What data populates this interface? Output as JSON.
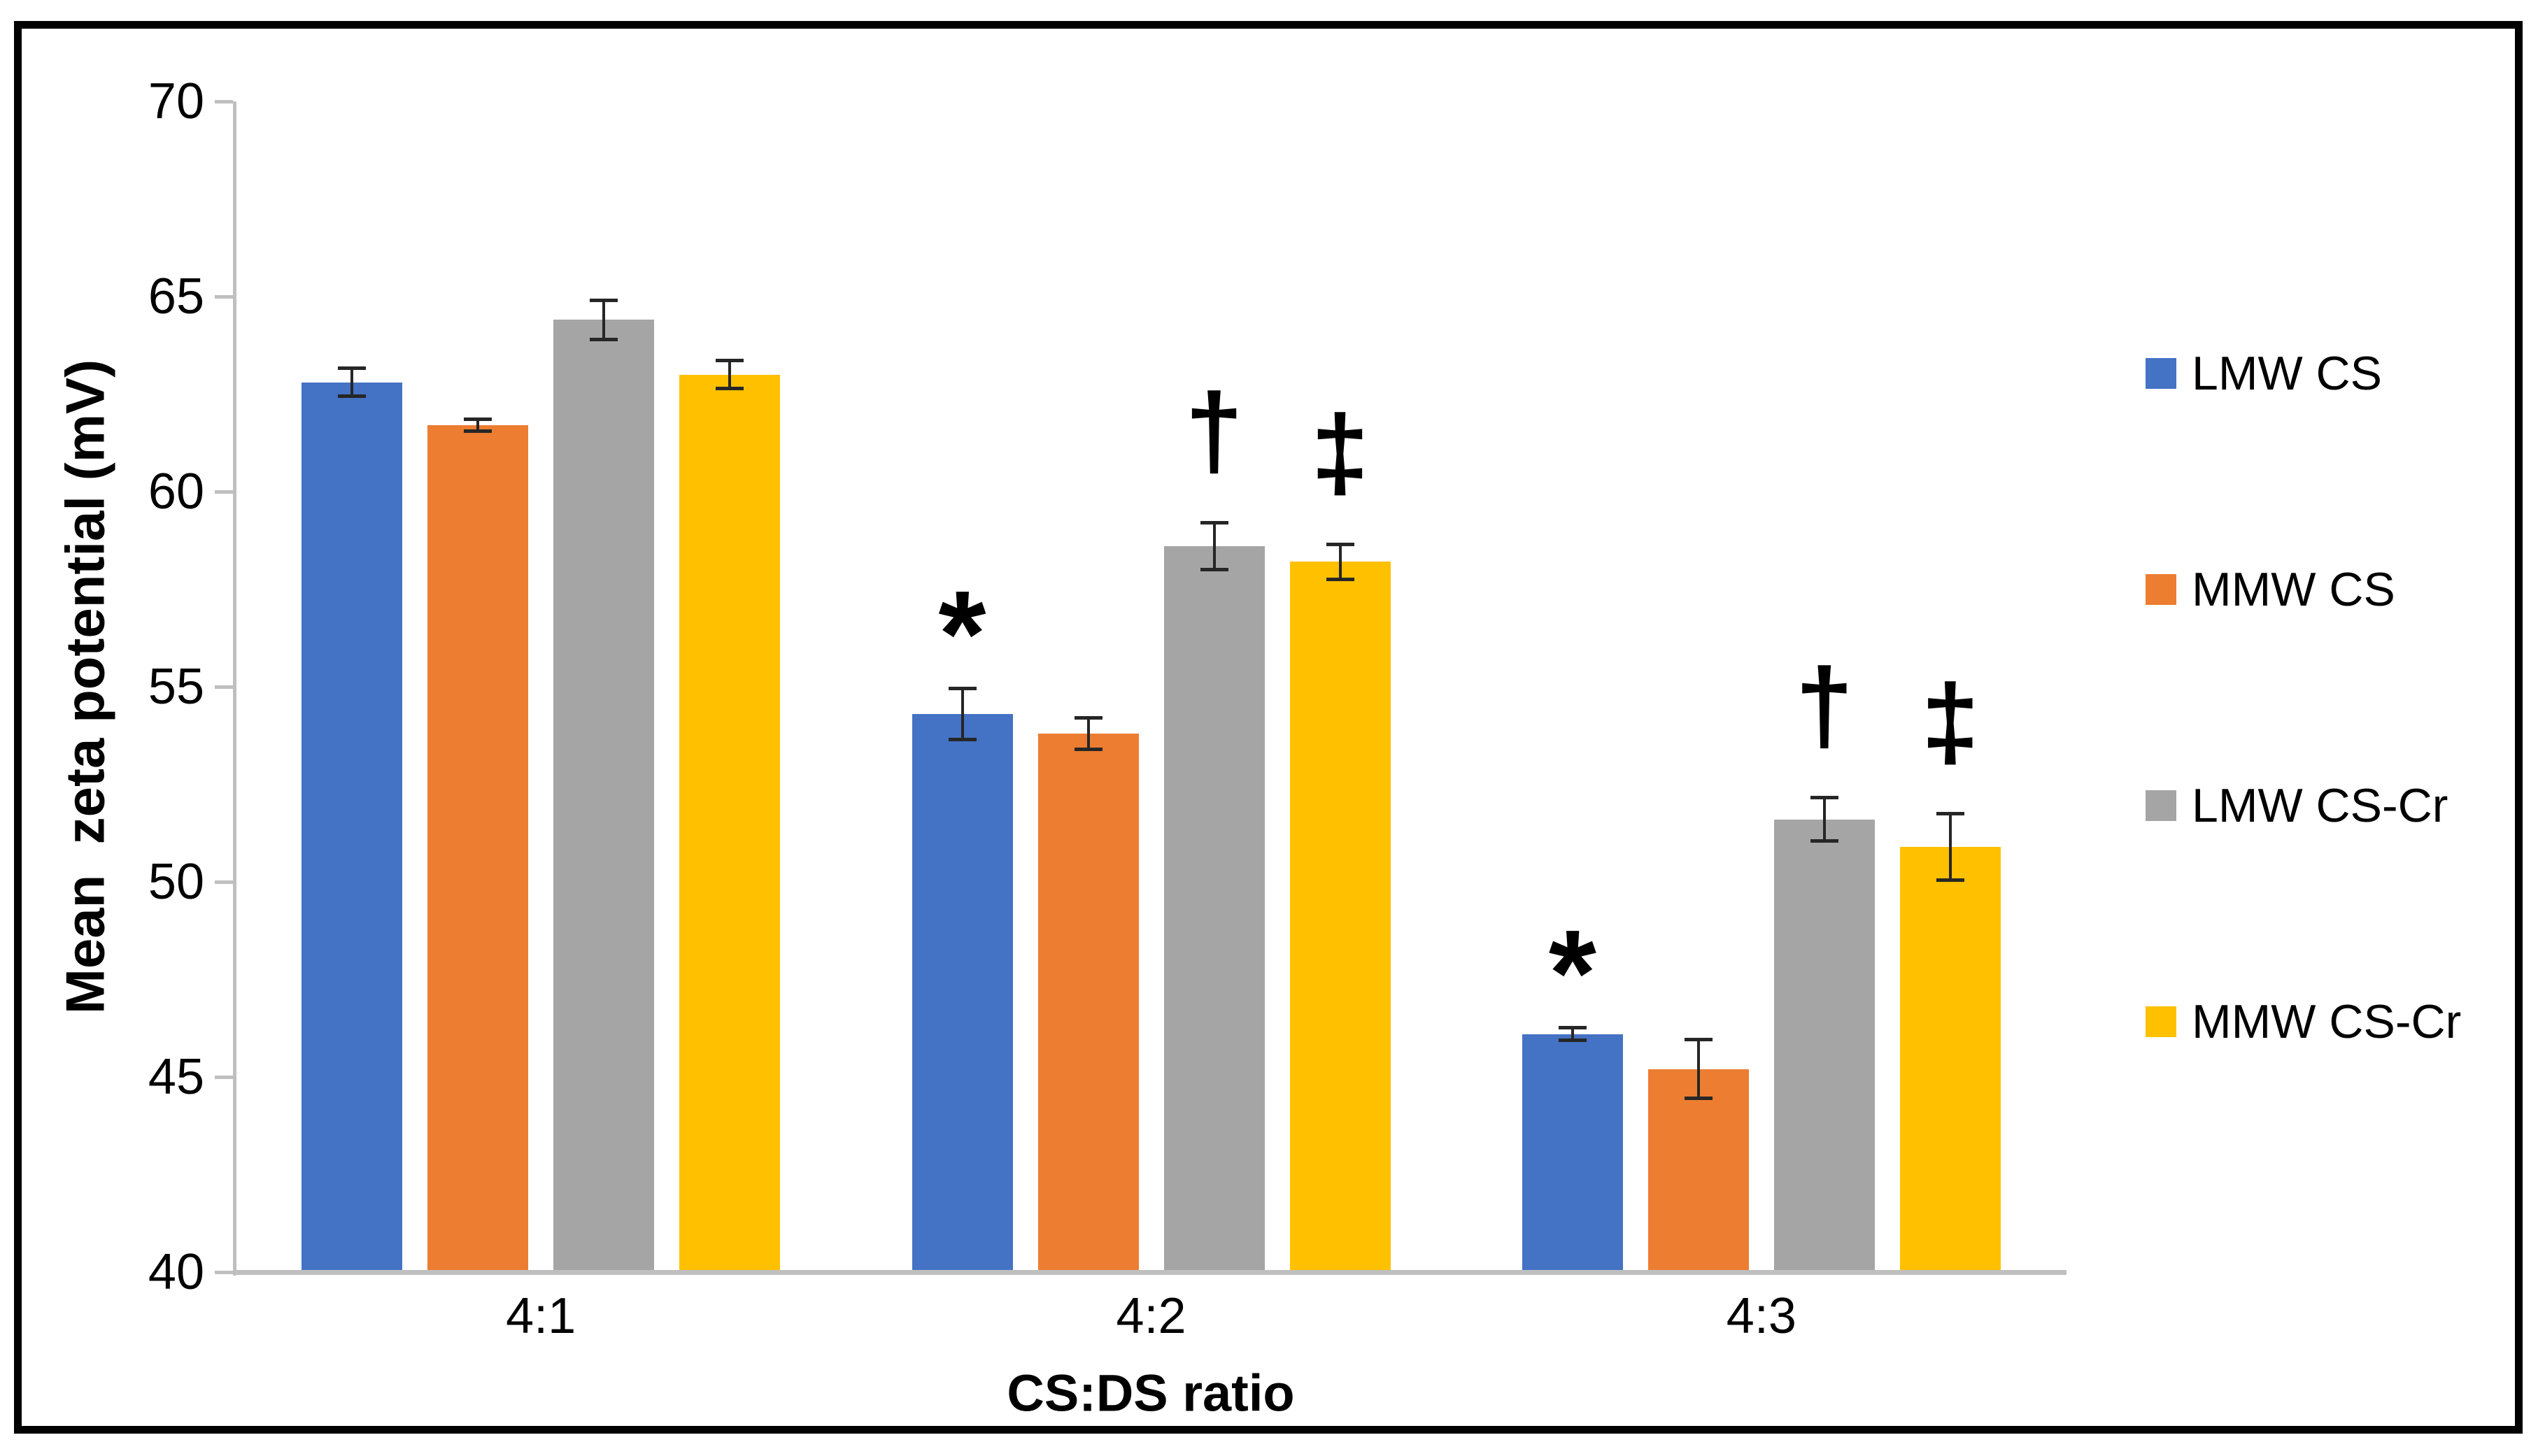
{
  "figure": {
    "background": "#ffffff",
    "border_color": "#000000"
  },
  "chart_data": {
    "type": "bar",
    "title": "",
    "xlabel": "CS:DS ratio",
    "ylabel": "Mean  zeta potential (mV)",
    "ylim": [
      40,
      70
    ],
    "yticks": [
      70,
      65,
      60,
      55,
      50,
      45,
      40
    ],
    "grid": false,
    "legend_position": "right",
    "axis_color": "#BFBFBF",
    "error_bar_color": "#262626",
    "text_color": "#000000",
    "categories": [
      "4:1",
      "4:2",
      "4:3"
    ],
    "series": [
      {
        "name": "LMW CS",
        "color": "#4472C4",
        "values": [
          62.8,
          54.3,
          46.1
        ],
        "errors": [
          0.4,
          0.7,
          0.2
        ],
        "sig_markers": [
          "",
          "*",
          "*"
        ]
      },
      {
        "name": "MMW CS",
        "color": "#ED7D31",
        "values": [
          61.7,
          53.8,
          45.2
        ],
        "errors": [
          0.2,
          0.45,
          0.8
        ],
        "sig_markers": [
          "",
          "",
          ""
        ]
      },
      {
        "name": "LMW CS-Cr",
        "color": "#A5A5A5",
        "values": [
          64.4,
          58.6,
          51.6
        ],
        "errors": [
          0.55,
          0.65,
          0.6
        ],
        "sig_markers": [
          "",
          "†",
          "†"
        ]
      },
      {
        "name": "MMW CS-Cr",
        "color": "#FFC000",
        "values": [
          63.0,
          58.2,
          50.9
        ],
        "errors": [
          0.4,
          0.5,
          0.9
        ],
        "sig_markers": [
          "",
          "‡",
          "‡"
        ]
      }
    ]
  }
}
